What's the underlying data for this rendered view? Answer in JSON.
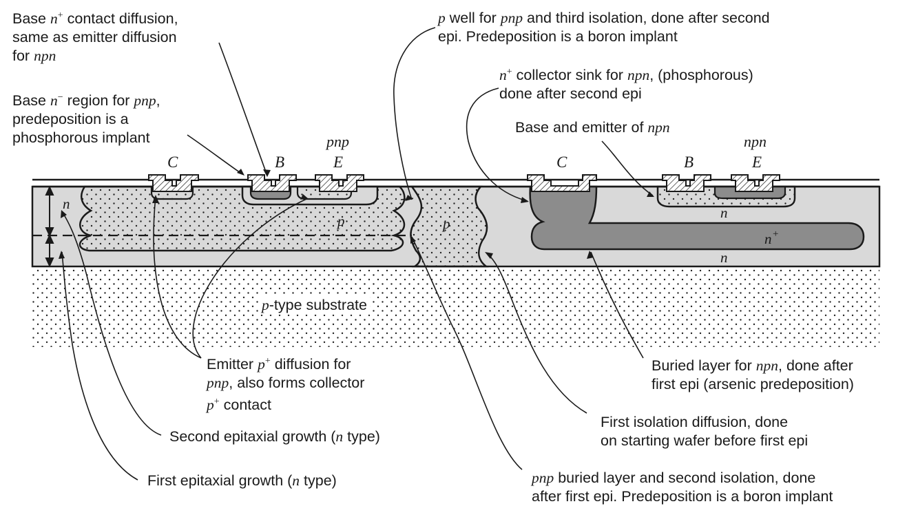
{
  "labels": {
    "base_contact": {
      "l1a": "Base ",
      "l1b": "n",
      "l1c": "+",
      "l1d": " contact diffusion,",
      "l2": "same as emitter diffusion",
      "l3a": "for ",
      "l3b": "npn"
    },
    "base_region": {
      "l1a": "Base ",
      "l1b": "n",
      "l1c": "−",
      "l1d": " region for ",
      "l1e": "pnp",
      "l1f": ",",
      "l2": "predeposition is a",
      "l3": "phosphorous implant"
    },
    "p_well": {
      "l1a": "p",
      "l1b": " well for ",
      "l1c": "pnp",
      "l1d": " and third isolation, done after second",
      "l2": "epi.  Predeposition is a boron implant"
    },
    "collector_sink": {
      "l1a": "n",
      "l1b": "+",
      "l1c": " collector sink for ",
      "l1d": "npn",
      "l1e": ", (phosphorous)",
      "l2": "done after second epi"
    },
    "npn_base_emitter": {
      "a": "Base and emitter of ",
      "b": "npn"
    },
    "emitter_p_plus": {
      "l1a": "Emitter ",
      "l1b": "p",
      "l1c": "+",
      "l1d": " diffusion for",
      "l2a": "pnp",
      "l2b": ", also forms collector",
      "l3a": "p",
      "l3b": "+",
      "l3c": " contact"
    },
    "buried_npn": {
      "l1a": "Buried layer for ",
      "l1b": "npn",
      "l1c": ", done after",
      "l2": "first epi (arsenic predeposition)"
    },
    "first_isolation": {
      "l1": "First isolation diffusion, done",
      "l2": "on starting wafer before first epi"
    },
    "second_epi": {
      "a": "Second epitaxial growth (",
      "b": "n",
      "c": " type)"
    },
    "first_epi": {
      "a": "First epitaxial growth (",
      "b": "n",
      "c": " type)"
    },
    "pnp_buried": {
      "l1a": "pnp",
      "l1b": " buried layer and second isolation, done",
      "l2": "after first epi.  Predeposition is a boron implant"
    },
    "substrate": {
      "a": "p",
      "b": "-type substrate"
    }
  },
  "device": {
    "pnp_title": "pnp",
    "npn_title": "npn",
    "pnp_c": "C",
    "pnp_b": "B",
    "pnp_e": "E",
    "npn_c": "C",
    "npn_b": "B",
    "npn_e": "E",
    "n_epi_left": "n",
    "p_pnp": "p",
    "p_well": "p",
    "n_npn_base": "n",
    "n_plus_buried": "n",
    "n_plus_buried_sup": "+",
    "n_npn_bottom": "n"
  },
  "colors": {
    "background": "#ffffff",
    "epi_gray": "#d9d9d9",
    "dark_gray": "#8c8c8c",
    "ink": "#1a1a1a"
  }
}
